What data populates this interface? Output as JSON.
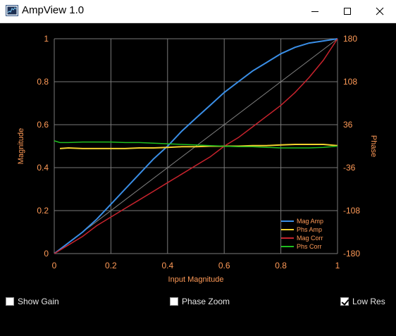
{
  "window": {
    "title": "AmpView 1.0",
    "icon": "oscilloscope-icon"
  },
  "controls": {
    "show_gain": {
      "label": "Show Gain",
      "checked": false
    },
    "phase_zoom": {
      "label": "Phase Zoom",
      "checked": false
    },
    "low_res": {
      "label": "Low Res",
      "checked": true
    }
  },
  "chart_data": {
    "type": "line",
    "title": "",
    "xlabel": "Input Magnitude",
    "ylabel": "Magnitude",
    "y2label": "Phase",
    "xlim": [
      0,
      1
    ],
    "ylim": [
      0,
      1
    ],
    "y2lim": [
      -180,
      180
    ],
    "x_ticks": [
      "0",
      "0.2",
      "0.4",
      "0.6",
      "0.8",
      "1"
    ],
    "y_ticks": [
      "0",
      "0.2",
      "0.4",
      "0.6",
      "0.8",
      "1"
    ],
    "y2_ticks": [
      "-180",
      "-108",
      "-36",
      "36",
      "108",
      "180"
    ],
    "grid": true,
    "legend_position": "bottom-right",
    "reference_line": {
      "x": [
        0,
        1
      ],
      "y": [
        0,
        1
      ],
      "color": "#808080"
    },
    "series": [
      {
        "name": "Mag Amp",
        "axis": "left",
        "color": "#3a8ee6",
        "x": [
          0,
          0.05,
          0.1,
          0.15,
          0.2,
          0.25,
          0.3,
          0.35,
          0.4,
          0.45,
          0.5,
          0.55,
          0.6,
          0.65,
          0.7,
          0.75,
          0.8,
          0.85,
          0.9,
          0.95,
          1.0
        ],
        "y": [
          0,
          0.05,
          0.1,
          0.16,
          0.23,
          0.3,
          0.37,
          0.44,
          0.5,
          0.57,
          0.63,
          0.69,
          0.75,
          0.8,
          0.85,
          0.89,
          0.93,
          0.96,
          0.98,
          0.99,
          1.0
        ]
      },
      {
        "name": "Phs Amp",
        "axis": "right",
        "color": "#f2d22e",
        "x": [
          0.02,
          0.05,
          0.1,
          0.15,
          0.2,
          0.25,
          0.3,
          0.35,
          0.4,
          0.45,
          0.5,
          0.55,
          0.6,
          0.65,
          0.7,
          0.75,
          0.8,
          0.85,
          0.9,
          0.95,
          1.0
        ],
        "y": [
          -4,
          -3,
          -4,
          -4,
          -4,
          -4,
          -3,
          -3,
          -2,
          -1,
          -1,
          0,
          0,
          0,
          1,
          1,
          2,
          3,
          3,
          3,
          1
        ]
      },
      {
        "name": "Mag Corr",
        "axis": "left",
        "color": "#c8232d",
        "x": [
          0,
          0.05,
          0.1,
          0.15,
          0.2,
          0.25,
          0.3,
          0.35,
          0.4,
          0.45,
          0.5,
          0.55,
          0.6,
          0.65,
          0.7,
          0.75,
          0.8,
          0.85,
          0.9,
          0.95,
          1.0
        ],
        "y": [
          0,
          0.04,
          0.08,
          0.13,
          0.17,
          0.21,
          0.25,
          0.29,
          0.33,
          0.37,
          0.41,
          0.45,
          0.5,
          0.54,
          0.59,
          0.64,
          0.69,
          0.75,
          0.82,
          0.9,
          1.0
        ]
      },
      {
        "name": "Phs Corr",
        "axis": "right",
        "color": "#1fbf1f",
        "x": [
          0,
          0.02,
          0.05,
          0.1,
          0.15,
          0.2,
          0.25,
          0.3,
          0.35,
          0.4,
          0.45,
          0.5,
          0.55,
          0.6,
          0.65,
          0.7,
          0.75,
          0.8,
          0.85,
          0.9,
          0.95,
          1.0
        ],
        "y": [
          9,
          6,
          6,
          7,
          7,
          7,
          6,
          6,
          5,
          4,
          3,
          2,
          1,
          0,
          -1,
          -1,
          -2,
          -3,
          -3,
          -3,
          -2,
          0
        ]
      }
    ]
  }
}
